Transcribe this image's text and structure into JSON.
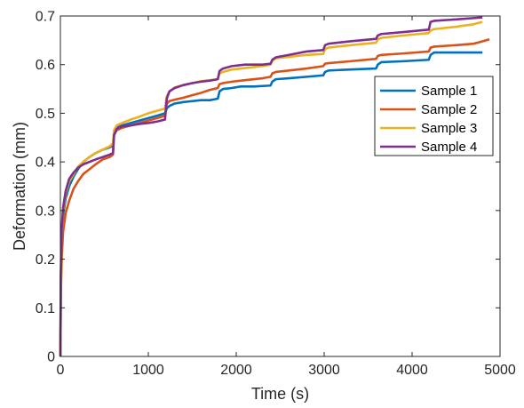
{
  "chart_data": {
    "type": "line",
    "title": "",
    "xlabel": "Time (s)",
    "ylabel": "Deformation (mm)",
    "xlim": [
      0,
      5000
    ],
    "ylim": [
      0,
      0.7
    ],
    "xticks": [
      0,
      1000,
      2000,
      3000,
      4000,
      5000
    ],
    "xtick_labels": [
      "0",
      "1000",
      "2000",
      "3000",
      "4000",
      "5000"
    ],
    "yticks": [
      0,
      0.1,
      0.2,
      0.3,
      0.4,
      0.5,
      0.6,
      0.7
    ],
    "ytick_labels": [
      "0",
      "0.1",
      "0.2",
      "0.3",
      "0.4",
      "0.5",
      "0.6",
      "0.7"
    ],
    "grid": false,
    "legend_position": "right, upper-middle",
    "series": [
      {
        "name": "Sample 1",
        "color": "#0072BD",
        "x": [
          0,
          5,
          15,
          30,
          60,
          100,
          150,
          200,
          260,
          330,
          400,
          480,
          560,
          598,
          610,
          640,
          700,
          800,
          900,
          1000,
          1100,
          1190,
          1210,
          1240,
          1300,
          1400,
          1500,
          1600,
          1700,
          1790,
          1810,
          1850,
          1950,
          2050,
          2200,
          2390,
          2410,
          2450,
          2600,
          2800,
          2990,
          3010,
          3050,
          3300,
          3590,
          3610,
          3650,
          3900,
          4190,
          4210,
          4250,
          4500,
          4800
        ],
        "y": [
          0,
          0.15,
          0.24,
          0.29,
          0.325,
          0.35,
          0.37,
          0.385,
          0.4,
          0.41,
          0.418,
          0.425,
          0.43,
          0.433,
          0.46,
          0.47,
          0.475,
          0.48,
          0.485,
          0.49,
          0.495,
          0.5,
          0.51,
          0.515,
          0.52,
          0.523,
          0.525,
          0.527,
          0.527,
          0.53,
          0.545,
          0.55,
          0.552,
          0.555,
          0.555,
          0.557,
          0.565,
          0.57,
          0.572,
          0.575,
          0.578,
          0.585,
          0.588,
          0.59,
          0.592,
          0.6,
          0.605,
          0.607,
          0.61,
          0.62,
          0.625,
          0.625,
          0.625
        ]
      },
      {
        "name": "Sample 2",
        "color": "#D95319",
        "x": [
          0,
          5,
          15,
          30,
          60,
          100,
          150,
          200,
          260,
          330,
          400,
          480,
          560,
          598,
          610,
          640,
          700,
          800,
          900,
          1000,
          1100,
          1190,
          1210,
          1240,
          1300,
          1400,
          1500,
          1600,
          1700,
          1790,
          1810,
          1850,
          1950,
          2100,
          2300,
          2390,
          2410,
          2450,
          2600,
          2800,
          2990,
          3010,
          3050,
          3300,
          3590,
          3610,
          3650,
          3900,
          4190,
          4210,
          4250,
          4500,
          4700,
          4800,
          4880
        ],
        "y": [
          0,
          0.13,
          0.2,
          0.255,
          0.295,
          0.32,
          0.345,
          0.36,
          0.375,
          0.385,
          0.395,
          0.405,
          0.41,
          0.415,
          0.455,
          0.465,
          0.47,
          0.475,
          0.48,
          0.485,
          0.49,
          0.495,
          0.52,
          0.525,
          0.528,
          0.532,
          0.537,
          0.542,
          0.548,
          0.552,
          0.56,
          0.562,
          0.565,
          0.568,
          0.572,
          0.575,
          0.582,
          0.585,
          0.588,
          0.592,
          0.597,
          0.602,
          0.603,
          0.607,
          0.612,
          0.618,
          0.62,
          0.623,
          0.627,
          0.635,
          0.637,
          0.64,
          0.643,
          0.648,
          0.652
        ]
      },
      {
        "name": "Sample 3",
        "color": "#EDB120",
        "x": [
          0,
          5,
          15,
          30,
          60,
          100,
          150,
          200,
          260,
          330,
          400,
          480,
          560,
          598,
          610,
          640,
          700,
          800,
          900,
          1000,
          1100,
          1190,
          1210,
          1240,
          1300,
          1400,
          1500,
          1600,
          1700,
          1790,
          1810,
          1850,
          1950,
          2100,
          2300,
          2390,
          2410,
          2450,
          2600,
          2800,
          2990,
          3010,
          3050,
          3300,
          3590,
          3610,
          3650,
          3900,
          4190,
          4210,
          4250,
          4500,
          4700,
          4800
        ],
        "y": [
          0,
          0.16,
          0.255,
          0.3,
          0.335,
          0.36,
          0.375,
          0.39,
          0.4,
          0.41,
          0.418,
          0.425,
          0.432,
          0.438,
          0.465,
          0.475,
          0.48,
          0.487,
          0.493,
          0.5,
          0.505,
          0.51,
          0.535,
          0.545,
          0.553,
          0.558,
          0.562,
          0.566,
          0.568,
          0.57,
          0.582,
          0.585,
          0.59,
          0.593,
          0.597,
          0.6,
          0.608,
          0.613,
          0.616,
          0.62,
          0.622,
          0.632,
          0.635,
          0.64,
          0.645,
          0.652,
          0.655,
          0.66,
          0.665,
          0.67,
          0.673,
          0.678,
          0.683,
          0.688
        ]
      },
      {
        "name": "Sample 4",
        "color": "#7E2F8E",
        "x": [
          0,
          5,
          15,
          30,
          60,
          100,
          150,
          200,
          260,
          330,
          400,
          480,
          560,
          598,
          610,
          640,
          700,
          800,
          900,
          1000,
          1100,
          1190,
          1210,
          1240,
          1300,
          1400,
          1500,
          1600,
          1700,
          1790,
          1810,
          1850,
          1950,
          2100,
          2300,
          2390,
          2410,
          2450,
          2600,
          2800,
          2990,
          3010,
          3050,
          3300,
          3590,
          3610,
          3650,
          3900,
          4190,
          4210,
          4250,
          4500,
          4800
        ],
        "y": [
          0,
          0.17,
          0.26,
          0.305,
          0.34,
          0.365,
          0.378,
          0.388,
          0.395,
          0.4,
          0.405,
          0.41,
          0.415,
          0.418,
          0.455,
          0.468,
          0.473,
          0.475,
          0.478,
          0.48,
          0.483,
          0.487,
          0.53,
          0.545,
          0.552,
          0.558,
          0.562,
          0.565,
          0.567,
          0.57,
          0.587,
          0.592,
          0.597,
          0.6,
          0.6,
          0.602,
          0.61,
          0.615,
          0.62,
          0.627,
          0.63,
          0.64,
          0.643,
          0.648,
          0.653,
          0.66,
          0.663,
          0.667,
          0.672,
          0.688,
          0.69,
          0.693,
          0.697
        ]
      }
    ]
  }
}
